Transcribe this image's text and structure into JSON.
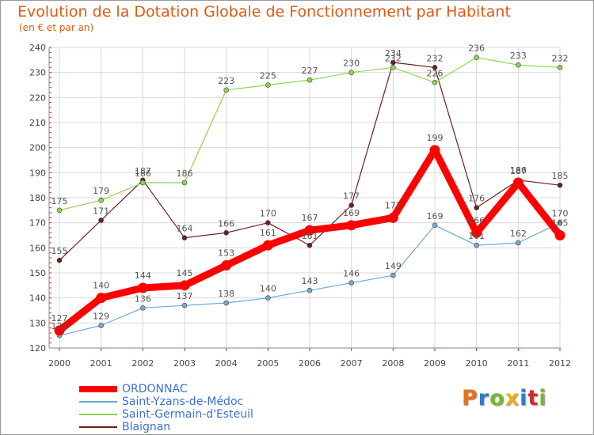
{
  "title": "Evolution de la Dotation Globale de Fonctionnement par Habitant",
  "subtitle": "(en € et par an)",
  "logo": {
    "text": "Proxiti",
    "colors": [
      "#e8701a",
      "#2a7fc8",
      "#7ab829",
      "#e8b21a",
      "#2a7fc8",
      "#d32a2a",
      "#7ab829"
    ]
  },
  "chart_data": {
    "type": "line",
    "title": "Evolution de la Dotation Globale de Fonctionnement par Habitant",
    "subtitle": "(en € et par an)",
    "xlabel": "",
    "ylabel": "",
    "ylim": [
      120,
      240
    ],
    "yticks": [
      120,
      130,
      140,
      150,
      160,
      170,
      180,
      190,
      200,
      210,
      220,
      230,
      240
    ],
    "x": [
      "2000",
      "2001",
      "2002",
      "2003",
      "2004",
      "2005",
      "2006",
      "2007",
      "2008",
      "2009",
      "2010",
      "2011",
      "2012"
    ],
    "grid": true,
    "legend_position": "bottom-left",
    "series": [
      {
        "name": "Blaignan",
        "color": "#6b1f1f",
        "emphasis": false,
        "values": [
          155,
          171,
          187,
          164,
          166,
          170,
          161,
          177,
          234,
          232,
          176,
          187,
          185
        ],
        "labels": [
          "155",
          "171",
          "187",
          "164",
          "166",
          "170",
          "161",
          "177",
          "234",
          "232",
          "176",
          "187",
          "185"
        ]
      },
      {
        "name": "Saint-Germain-d'Esteuil",
        "color": "#8ed44f",
        "emphasis": false,
        "values": [
          175,
          179,
          186,
          186,
          223,
          225,
          227,
          230,
          232,
          226,
          236,
          233,
          232
        ],
        "labels": [
          "175",
          "179",
          "186",
          "186",
          "223",
          "225",
          "227",
          "230",
          "232",
          "226",
          "236",
          "233",
          "232"
        ]
      },
      {
        "name": "Saint-Yzans-de-Médoc",
        "color": "#6fa8d6",
        "emphasis": false,
        "values": [
          125,
          129,
          136,
          137,
          138,
          140,
          143,
          146,
          149,
          169,
          161,
          162,
          170
        ],
        "labels": [
          "125",
          "129",
          "136",
          "137",
          "138",
          "140",
          "143",
          "146",
          "149",
          "169",
          "161",
          "162",
          "170"
        ]
      },
      {
        "name": "ORDONNAC",
        "color": "#ff0000",
        "emphasis": true,
        "values": [
          127,
          140,
          144,
          145,
          153,
          161,
          167,
          169,
          172,
          199,
          166,
          186,
          165
        ],
        "labels": [
          "127",
          "140",
          "144",
          "145",
          "153",
          "161",
          "167",
          "169",
          "172",
          "199",
          "166",
          "186",
          "165"
        ]
      }
    ],
    "legend": [
      {
        "name": "ORDONNAC",
        "color": "#ff0000",
        "text_color": "#3a6fd8"
      },
      {
        "name": "Saint-Yzans-de-Médoc",
        "color": "#6fa8d6",
        "text_color": "#3a6fd8"
      },
      {
        "name": "Saint-Germain-d'Esteuil",
        "color": "#8ed44f",
        "text_color": "#3a6fd8"
      },
      {
        "name": "Blaignan",
        "color": "#6b1f1f",
        "text_color": "#3a6fd8"
      }
    ]
  }
}
